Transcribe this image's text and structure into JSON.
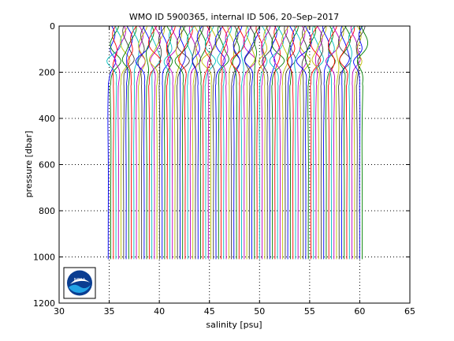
{
  "chart_data": {
    "type": "line",
    "title": "WMO ID 5900365, internal ID 506, 20–Sep–2017",
    "xlabel": "salinity [psu]",
    "ylabel": "pressure [dbar]",
    "xlim": [
      30,
      65
    ],
    "ylim": [
      0,
      1200
    ],
    "y_reversed": true,
    "grid": true,
    "x_ticks": [
      30,
      35,
      40,
      45,
      50,
      55,
      60,
      65
    ],
    "y_ticks": [
      0,
      200,
      400,
      600,
      800,
      1000,
      1200
    ],
    "x_tick_labels": [
      "30",
      "35",
      "40",
      "45",
      "50",
      "55",
      "60",
      "65"
    ],
    "y_tick_labels": [
      "0",
      "200",
      "400",
      "600",
      "800",
      "1000",
      "1200"
    ],
    "profile_count": 100,
    "first_profile_deep_salinity": 34.9,
    "last_profile_deep_salinity": 60.3,
    "profile_offset": 0.256,
    "max_pressure": 1010,
    "series_colors": [
      "#0000ff",
      "#008000",
      "#ff0000",
      "#00bfbf",
      "#bf00bf",
      "#bfbf00",
      "#404040"
    ],
    "logo": {
      "text": "NOAA"
    }
  }
}
